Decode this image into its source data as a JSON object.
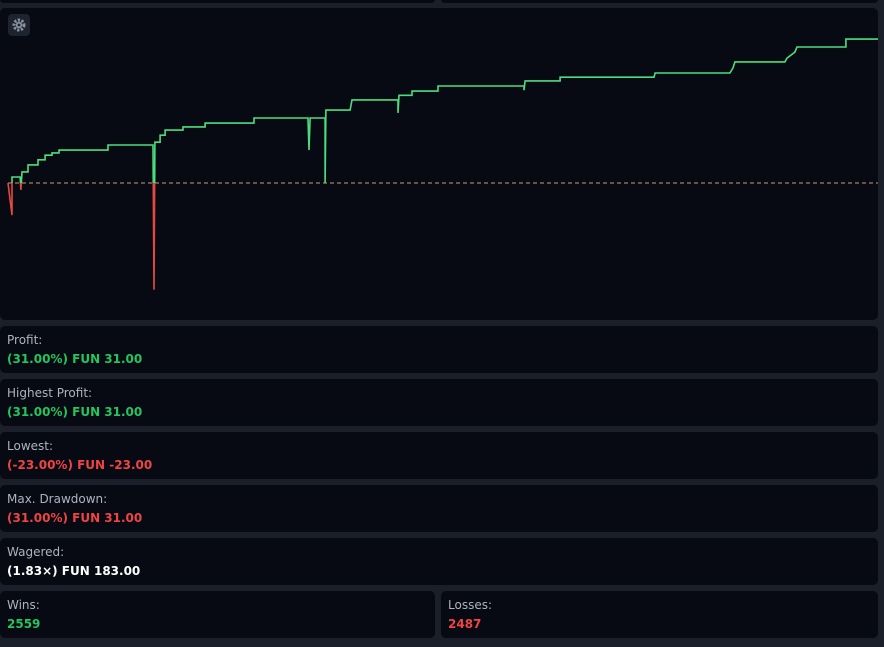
{
  "chart_data": {
    "type": "line",
    "x": [
      0,
      23,
      23,
      70,
      75,
      81,
      116,
      116,
      174,
      174,
      215,
      215,
      255,
      255,
      296,
      296,
      580,
      580,
      841,
      847,
      852,
      882,
      882,
      911,
      911,
      1015,
      1015,
      1143,
      1143,
      1427,
      1427,
      1740,
      1746,
      1752,
      1839,
      1839,
      1844,
      1984,
      1995,
      2262,
      2262,
      2268,
      2343,
      2343,
      2494,
      2494,
      2993,
      2993,
      2999,
      3202,
      3202,
      3747,
      3753,
      4187,
      4205,
      4216,
      4506,
      4518,
      4564,
      4576,
      4860,
      4860,
      5046
    ],
    "values": [
      0,
      -6.9,
      1.3,
      1.3,
      -1.5,
      2.4,
      2.4,
      3.9,
      3.9,
      5.0,
      5.0,
      6.0,
      6.0,
      6.5,
      6.5,
      7.1,
      7.1,
      8.2,
      8.2,
      -23,
      8.8,
      8.8,
      10.3,
      10.3,
      11.4,
      11.4,
      12.1,
      12.1,
      12.9,
      12.9,
      14.0,
      14.0,
      7.1,
      14.0,
      14.0,
      0,
      15.7,
      15.7,
      17.9,
      17.9,
      15.1,
      18.9,
      18.9,
      19.8,
      19.8,
      20.9,
      20.9,
      20.0,
      22.0,
      22.0,
      22.8,
      22.8,
      23.7,
      23.7,
      24.8,
      26.1,
      26.1,
      26.9,
      28.2,
      29.3,
      29.3,
      31,
      31
    ],
    "xlim": [
      0,
      5046
    ],
    "ylim": [
      -29.5,
      37.7
    ],
    "reference_line": 0,
    "color": "#4ade80",
    "negative_color": "#e5483e"
  },
  "stats": [
    {
      "label": "Profit:",
      "value": "(31.00%) FUN 31.00",
      "color": "#22c55e"
    },
    {
      "label": "Highest Profit:",
      "value": "(31.00%) FUN 31.00",
      "color": "#22c55e"
    },
    {
      "label": "Lowest:",
      "value": "(-23.00%) FUN -23.00",
      "color": "#ef4444"
    },
    {
      "label": "Max. Drawdown:",
      "value": "(31.00%) FUN 31.00",
      "color": "#ef4444"
    },
    {
      "label": "Wagered:",
      "value": "(1.83×) FUN 183.00",
      "color": "#ffffff"
    },
    {
      "label": "Wins:",
      "value": "2559",
      "color": "#22c55e"
    },
    {
      "label": "Losses:",
      "value": "2487",
      "color": "#ef4444"
    }
  ]
}
